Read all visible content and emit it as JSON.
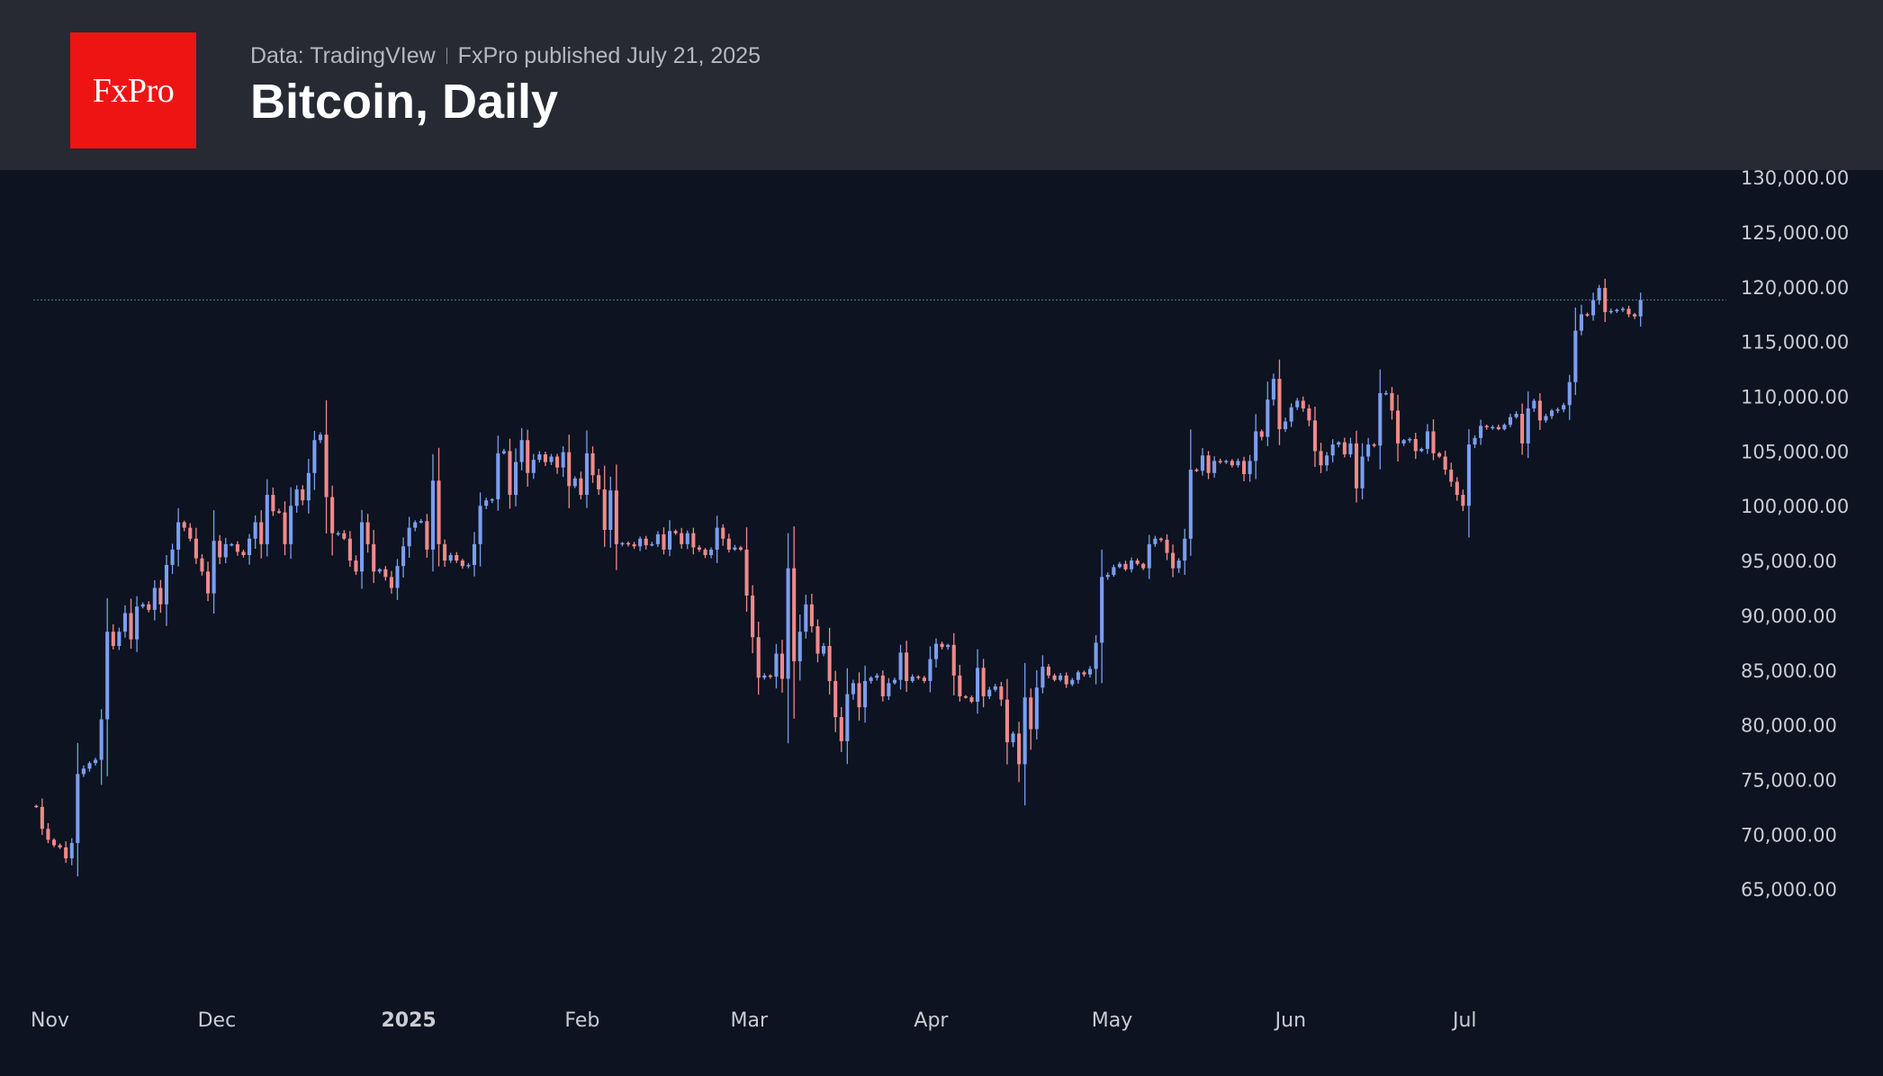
{
  "header": {
    "logo": "FxPro",
    "source": "Data: TradingVIew",
    "publisher": "FxPro published July 21, 2025",
    "title": "Bitcoin, Daily"
  },
  "colors": {
    "up": "#7b9ef0",
    "down": "#f08a8a",
    "background": "#0d1320",
    "header": "#272a33",
    "logo": "#ee1414",
    "price_line": "#4a6e86"
  },
  "chart_data": {
    "type": "candlestick",
    "title": "Bitcoin, Daily",
    "ylim": [
      60000,
      131000
    ],
    "y_ticks": [
      {
        "value": 130000,
        "label": "130,000.00"
      },
      {
        "value": 125000,
        "label": "125,000.00"
      },
      {
        "value": 120000,
        "label": "120,000.00"
      },
      {
        "value": 115000,
        "label": "115,000.00"
      },
      {
        "value": 110000,
        "label": "110,000.00"
      },
      {
        "value": 105000,
        "label": "105,000.00"
      },
      {
        "value": 100000,
        "label": "100,000.00"
      },
      {
        "value": 95000,
        "label": "95,000.00"
      },
      {
        "value": 90000,
        "label": "90,000.00"
      },
      {
        "value": 85000,
        "label": "85,000.00"
      },
      {
        "value": 80000,
        "label": "80,000.00"
      },
      {
        "value": 75000,
        "label": "75,000.00"
      },
      {
        "value": 70000,
        "label": "70,000.00"
      },
      {
        "value": 65000,
        "label": "65,000.00"
      }
    ],
    "x_ticks": [
      {
        "index": 0,
        "label": "Nov",
        "bold": false
      },
      {
        "index": 30,
        "label": "Dec",
        "bold": false
      },
      {
        "index": 61,
        "label": "2025",
        "bold": true
      },
      {
        "index": 92,
        "label": "Feb",
        "bold": false
      },
      {
        "index": 120,
        "label": "Mar",
        "bold": false
      },
      {
        "index": 151,
        "label": "Apr",
        "bold": false
      },
      {
        "index": 181,
        "label": "May",
        "bold": false
      },
      {
        "index": 212,
        "label": "Jun",
        "bold": false
      },
      {
        "index": 242,
        "label": "Jul",
        "bold": false
      }
    ],
    "x_range": [
      -0.5,
      275
    ],
    "last_price": 118800,
    "closes": [
      72500,
      70500,
      69500,
      69000,
      68800,
      67800,
      69200,
      75500,
      76000,
      76500,
      76800,
      80500,
      88500,
      87200,
      88500,
      90200,
      87800,
      90800,
      91000,
      90500,
      92500,
      91000,
      94600,
      96000,
      98500,
      98000,
      97000,
      95200,
      94000,
      92000,
      96800,
      95300,
      96500,
      96500,
      95800,
      95500,
      97000,
      98500,
      96500,
      101000,
      99500,
      99400,
      96500,
      100000,
      101500,
      100500,
      103000,
      106000,
      106500,
      100800,
      97500,
      97500,
      97000,
      95000,
      94000,
      98500,
      96500,
      94000,
      94200,
      93500,
      92500,
      94500,
      96300,
      98000,
      98500,
      98600,
      96000,
      102300,
      96500,
      95000,
      95500,
      95000,
      94500,
      94600,
      96500,
      100000,
      100500,
      100600,
      104800,
      105000,
      101000,
      104000,
      106000,
      103000,
      104200,
      104700,
      104000,
      104500,
      103500,
      104900,
      101800,
      102500,
      101000,
      104800,
      102800,
      101500,
      97800,
      101400,
      96500,
      96600,
      96500,
      96300,
      97000,
      96400,
      96500,
      97400,
      96000,
      97700,
      97500,
      96500,
      97500,
      96200,
      96000,
      95500,
      96000,
      98000,
      97000,
      96000,
      96200,
      96000,
      91800,
      88000,
      84300,
      84500,
      84400,
      86500,
      84200,
      94300,
      85800,
      88500,
      91000,
      89000,
      86500,
      87200,
      84000,
      80700,
      78500,
      82800,
      83800,
      81600,
      84000,
      84300,
      84500,
      82600,
      83800,
      84100,
      86600,
      84000,
      84400,
      84300,
      84000,
      86000,
      87400,
      87100,
      87300,
      84500,
      82600,
      82500,
      82100,
      85200,
      82600,
      83200,
      83500,
      82300,
      78400,
      79200,
      76400,
      82500,
      79600,
      83400,
      85300,
      84500,
      84100,
      84500,
      83700,
      84100,
      84800,
      84600,
      85100,
      87500,
      93500,
      93700,
      94400,
      94700,
      94200,
      95000,
      94700,
      94300,
      96500,
      97000,
      96900,
      95700,
      94300,
      95000,
      97000,
      103300,
      103200,
      104600,
      103000,
      104100,
      104000,
      104100,
      103700,
      104100,
      102900,
      104100,
      106800,
      106300,
      109700,
      111600,
      107000,
      107700,
      109000,
      109600,
      108900,
      107800,
      105000,
      103700,
      104600,
      105600,
      105800,
      104700,
      105700,
      101600,
      104500,
      105600,
      105500,
      110300,
      110300,
      108700,
      105700,
      106000,
      106100,
      105000,
      105200,
      106800,
      104800,
      104500,
      103300,
      102200,
      101000,
      100000,
      105600,
      106200,
      107300,
      107200,
      107200,
      107000,
      107400,
      108100,
      108400,
      105700,
      108900,
      109600,
      107800,
      108200,
      108700,
      108800,
      109200,
      111300,
      116000,
      117500,
      117400,
      118800,
      119900,
      117700,
      117800,
      117900,
      118000,
      117500,
      117300,
      118800
    ],
    "prev_open": 72600,
    "series_note": ""
  }
}
